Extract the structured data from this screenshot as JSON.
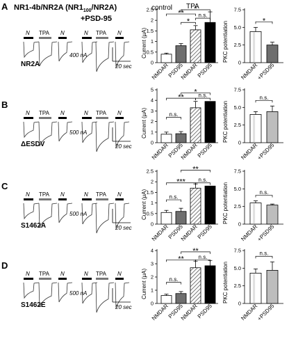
{
  "header": {
    "title": "NR1-4b/NR2A (NR1",
    "title_sub": "100",
    "title_end": "/NR2A)",
    "subtitle": "+PSD-95"
  },
  "trace_labels": {
    "n": "N",
    "tpa": "TPA"
  },
  "bar_labels": {
    "control": "control",
    "tpa": "TPA"
  },
  "axis_labels": {
    "current": "Current (μA)",
    "pkc": "PKC potentiation"
  },
  "panels": [
    {
      "letter": "A",
      "mutant": "NR2A",
      "scale_current": "400 nA",
      "scale_time": "20 sec",
      "current_chart": {
        "type": "bar",
        "categories": [
          "NMDAR",
          "PSD95",
          "NMDAR",
          "PSD95"
        ],
        "values": [
          0.4,
          0.8,
          1.55,
          1.9
        ],
        "errors": [
          0.05,
          0.1,
          0.2,
          0.5
        ],
        "yticks": [
          "0",
          "0.5",
          "1",
          "1.5",
          "2",
          "2.5"
        ],
        "ylim": [
          0,
          2.5
        ],
        "sig_lines": [
          {
            "from": 1,
            "to": 2,
            "text": "*",
            "level": 1.9
          },
          {
            "from": 0,
            "to": 2,
            "text": "**",
            "level": 2.3
          },
          {
            "from": 2,
            "to": 3,
            "text": "n.s.",
            "level": 2.1
          },
          {
            "from": 1,
            "to": 3,
            "text": "*",
            "level": 2.5
          }
        ]
      },
      "pkc_chart": {
        "type": "bar",
        "categories": [
          "NMDAR",
          "+PSD95"
        ],
        "values": [
          4.4,
          2.5
        ],
        "errors": [
          0.6,
          0.4
        ],
        "yticks": [
          "0",
          "2.5",
          "5.0",
          "7.5"
        ],
        "ylim": [
          0,
          7.5
        ],
        "sig": "*"
      }
    },
    {
      "letter": "B",
      "mutant": "ΔESDV",
      "scale_current": "500 nA",
      "scale_time": "20 sec",
      "current_chart": {
        "type": "bar",
        "categories": [
          "NMDAR",
          "PSD95",
          "NMDAR",
          "PSD95"
        ],
        "values": [
          0.8,
          0.85,
          3.3,
          3.9
        ],
        "errors": [
          0.2,
          0.2,
          0.6,
          0.0
        ],
        "yticks": [
          "0",
          "1",
          "2",
          "3",
          "4",
          "5"
        ],
        "ylim": [
          0,
          5
        ],
        "sig_lines": [
          {
            "from": 0,
            "to": 1,
            "text": "n.s.",
            "level": 2.4
          },
          {
            "from": 0,
            "to": 2,
            "text": "**",
            "level": 4.2
          },
          {
            "from": 2,
            "to": 3,
            "text": "n.s.",
            "level": 4.2
          },
          {
            "from": 1,
            "to": 3,
            "text": "*",
            "level": 4.7
          }
        ]
      },
      "pkc_chart": {
        "type": "bar",
        "categories": [
          "NMDAR",
          "+PSD95"
        ],
        "values": [
          4.0,
          4.4
        ],
        "errors": [
          0.4,
          0.8
        ],
        "yticks": [
          "0",
          "2.5",
          "5.0",
          "7.5"
        ],
        "ylim": [
          0,
          7.5
        ],
        "sig": "n.s."
      }
    },
    {
      "letter": "C",
      "mutant": "S1462A",
      "scale_current": "500 nA",
      "scale_time": "20 sec",
      "current_chart": {
        "type": "bar",
        "categories": [
          "NMDAR",
          "PSD95",
          "NMDAR",
          "PSD95"
        ],
        "values": [
          0.55,
          0.6,
          1.7,
          1.8
        ],
        "errors": [
          0.1,
          0.15,
          0.2,
          0.0
        ],
        "yticks": [
          "0",
          "0.5",
          "1",
          "1.5",
          "2",
          "2.5"
        ],
        "ylim": [
          0,
          2.5
        ],
        "sig_lines": [
          {
            "from": 0,
            "to": 1,
            "text": "n.s.",
            "level": 1.15
          },
          {
            "from": 0,
            "to": 2,
            "text": "***",
            "level": 1.95
          },
          {
            "from": 2,
            "to": 3,
            "text": "n.s.",
            "level": 1.95
          },
          {
            "from": 1,
            "to": 3,
            "text": "**",
            "level": 2.55
          }
        ]
      },
      "pkc_chart": {
        "type": "bar",
        "categories": [
          "NMDAR",
          "+PSD95"
        ],
        "values": [
          3.0,
          2.7
        ],
        "errors": [
          0.3,
          0.15
        ],
        "yticks": [
          "0",
          "2.5",
          "5.0",
          "7.5"
        ],
        "ylim": [
          0,
          7.5
        ],
        "sig": "n.s."
      }
    },
    {
      "letter": "D",
      "mutant": "S1462E",
      "scale_current": "500 nA",
      "scale_time": "20 sec",
      "current_chart": {
        "type": "bar",
        "categories": [
          "NMDAR",
          "PSD95",
          "NMDAR",
          "PSD95"
        ],
        "values": [
          0.6,
          0.75,
          2.7,
          2.85
        ],
        "errors": [
          0.1,
          0.15,
          0.5,
          0.4
        ],
        "yticks": [
          "0",
          "1",
          "2",
          "3",
          "4"
        ],
        "ylim": [
          0,
          4
        ],
        "sig_lines": [
          {
            "from": 0,
            "to": 1,
            "text": "n.s.",
            "level": 1.6
          },
          {
            "from": 0,
            "to": 2,
            "text": "**",
            "level": 3.3
          },
          {
            "from": 2,
            "to": 3,
            "text": "n.s.",
            "level": 3.3
          },
          {
            "from": 1,
            "to": 3,
            "text": "**",
            "level": 3.9
          }
        ]
      },
      "pkc_chart": {
        "type": "bar",
        "categories": [
          "NMDAR",
          "+PSD95"
        ],
        "values": [
          4.3,
          4.7
        ],
        "errors": [
          0.6,
          1.2
        ],
        "yticks": [
          "0",
          "2.5",
          "5.0",
          "7.5"
        ],
        "ylim": [
          0,
          7.5
        ],
        "sig": "n.s."
      }
    }
  ],
  "chart_data": [
    {
      "type": "bar",
      "panel": "A",
      "ylabel": "Current (μA)",
      "categories": [
        "NMDAR",
        "PSD95",
        "NMDAR",
        "PSD95"
      ],
      "values": [
        0.4,
        0.8,
        1.55,
        1.9
      ],
      "ylim": [
        0,
        2.5
      ]
    },
    {
      "type": "bar",
      "panel": "A",
      "ylabel": "PKC potentiation",
      "categories": [
        "NMDAR",
        "+PSD95"
      ],
      "values": [
        4.4,
        2.5
      ],
      "ylim": [
        0,
        7.5
      ]
    },
    {
      "type": "bar",
      "panel": "B",
      "ylabel": "Current (μA)",
      "categories": [
        "NMDAR",
        "PSD95",
        "NMDAR",
        "PSD95"
      ],
      "values": [
        0.8,
        0.85,
        3.3,
        3.9
      ],
      "ylim": [
        0,
        5
      ]
    },
    {
      "type": "bar",
      "panel": "B",
      "ylabel": "PKC potentiation",
      "categories": [
        "NMDAR",
        "+PSD95"
      ],
      "values": [
        4.0,
        4.4
      ],
      "ylim": [
        0,
        7.5
      ]
    },
    {
      "type": "bar",
      "panel": "C",
      "ylabel": "Current (μA)",
      "categories": [
        "NMDAR",
        "PSD95",
        "NMDAR",
        "PSD95"
      ],
      "values": [
        0.55,
        0.6,
        1.7,
        1.8
      ],
      "ylim": [
        0,
        2.5
      ]
    },
    {
      "type": "bar",
      "panel": "C",
      "ylabel": "PKC potentiation",
      "categories": [
        "NMDAR",
        "+PSD95"
      ],
      "values": [
        3.0,
        2.7
      ],
      "ylim": [
        0,
        7.5
      ]
    },
    {
      "type": "bar",
      "panel": "D",
      "ylabel": "Current (μA)",
      "categories": [
        "NMDAR",
        "PSD95",
        "NMDAR",
        "PSD95"
      ],
      "values": [
        0.6,
        0.75,
        2.7,
        2.85
      ],
      "ylim": [
        0,
        4
      ]
    },
    {
      "type": "bar",
      "panel": "D",
      "ylabel": "PKC potentiation",
      "categories": [
        "NMDAR",
        "+PSD95"
      ],
      "values": [
        4.3,
        4.7
      ],
      "ylim": [
        0,
        7.5
      ]
    }
  ]
}
